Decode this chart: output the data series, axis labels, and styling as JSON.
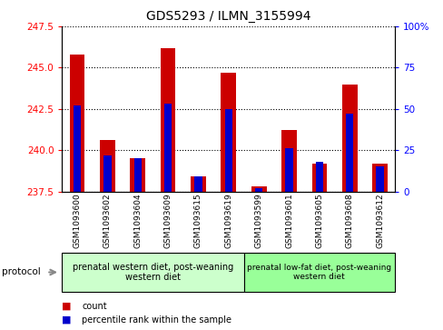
{
  "title": "GDS5293 / ILMN_3155994",
  "samples": [
    "GSM1093600",
    "GSM1093602",
    "GSM1093604",
    "GSM1093609",
    "GSM1093615",
    "GSM1093619",
    "GSM1093599",
    "GSM1093601",
    "GSM1093605",
    "GSM1093608",
    "GSM1093612"
  ],
  "counts": [
    245.8,
    240.6,
    239.5,
    246.2,
    238.4,
    244.7,
    237.8,
    241.2,
    239.2,
    244.0,
    239.2
  ],
  "percentiles": [
    52,
    22,
    20,
    53,
    9,
    50,
    2,
    26,
    18,
    47,
    15
  ],
  "ylim_left": [
    237.5,
    247.5
  ],
  "ylim_right": [
    0,
    100
  ],
  "yticks_left": [
    237.5,
    240.0,
    242.5,
    245.0,
    247.5
  ],
  "yticks_right": [
    0,
    25,
    50,
    75,
    100
  ],
  "bar_color_red": "#cc0000",
  "bar_color_blue": "#0000cc",
  "bg_color": "#ffffff",
  "group1_label": "prenatal western diet, post-weaning\nwestern diet",
  "group2_label": "prenatal low-fat diet, post-weaning\nwestern diet",
  "group1_count": 6,
  "group2_count": 5,
  "group1_color": "#ccffcc",
  "group2_color": "#99ff99",
  "protocol_label": "protocol",
  "legend_count": "count",
  "legend_percentile": "percentile rank within the sample",
  "bar_width": 0.5,
  "blue_bar_width": 0.25,
  "base_value": 237.5
}
